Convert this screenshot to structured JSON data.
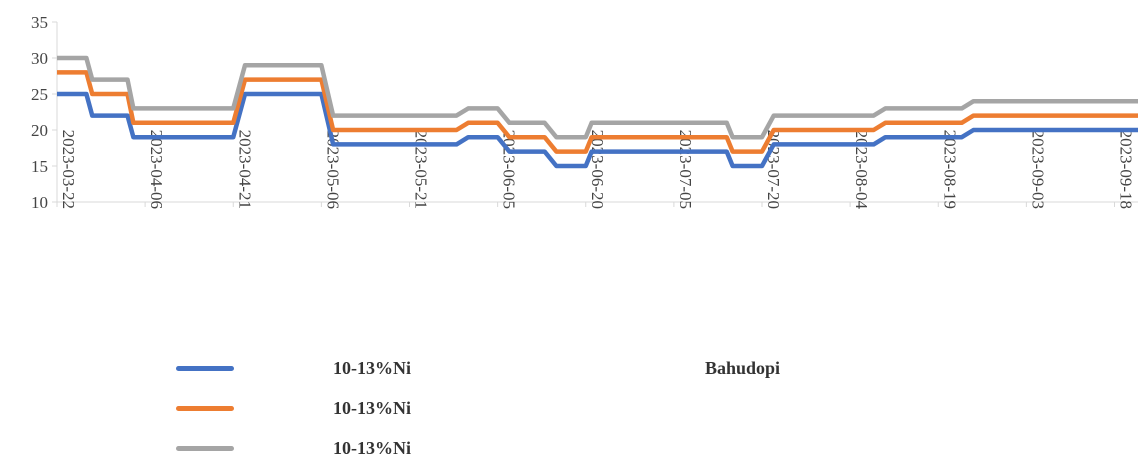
{
  "chart_data": {
    "type": "line",
    "title": "",
    "xlabel": "",
    "ylabel": "",
    "ylim": [
      10,
      35
    ],
    "yticks": [
      10,
      15,
      20,
      25,
      30,
      35
    ],
    "x_tick_labels": [
      "2023-03-22",
      "2023-04-06",
      "2023-04-21",
      "2023-05-06",
      "2023-05-21",
      "2023-06-05",
      "2023-06-20",
      "2023-07-05",
      "2023-07-20",
      "2023-08-04",
      "2023-08-19",
      "2023-09-03",
      "2023-09-18"
    ],
    "x_range": [
      "2023-03-22",
      "2023-09-22"
    ],
    "grid": false,
    "legend_position": "bottom",
    "series": [
      {
        "name": "10-13%Ni",
        "color": "#4472C4",
        "x": [
          "2023-03-22",
          "2023-03-27",
          "2023-03-28",
          "2023-04-03",
          "2023-04-04",
          "2023-04-21",
          "2023-04-23",
          "2023-05-06",
          "2023-05-08",
          "2023-05-29",
          "2023-05-31",
          "2023-06-05",
          "2023-06-07",
          "2023-06-13",
          "2023-06-15",
          "2023-06-20",
          "2023-06-21",
          "2023-07-14",
          "2023-07-15",
          "2023-07-20",
          "2023-07-22",
          "2023-08-08",
          "2023-08-10",
          "2023-08-23",
          "2023-08-25",
          "2023-09-22"
        ],
        "values": [
          25,
          25,
          22,
          22,
          19,
          19,
          25,
          25,
          18,
          18,
          19,
          19,
          17,
          17,
          15,
          15,
          17,
          17,
          15,
          15,
          18,
          18,
          19,
          19,
          20,
          20
        ]
      },
      {
        "name": "10-13%Ni",
        "color": "#ED7D31",
        "x": [
          "2023-03-22",
          "2023-03-27",
          "2023-03-28",
          "2023-04-03",
          "2023-04-04",
          "2023-04-21",
          "2023-04-23",
          "2023-05-06",
          "2023-05-08",
          "2023-05-29",
          "2023-05-31",
          "2023-06-05",
          "2023-06-07",
          "2023-06-13",
          "2023-06-15",
          "2023-06-20",
          "2023-06-21",
          "2023-07-14",
          "2023-07-15",
          "2023-07-20",
          "2023-07-22",
          "2023-08-08",
          "2023-08-10",
          "2023-08-23",
          "2023-08-25",
          "2023-09-22"
        ],
        "values": [
          28,
          28,
          25,
          25,
          21,
          21,
          27,
          27,
          20,
          20,
          21,
          21,
          19,
          19,
          17,
          17,
          19,
          19,
          17,
          17,
          20,
          20,
          21,
          21,
          22,
          22
        ]
      },
      {
        "name": "10-13%Ni",
        "color": "#A5A5A5",
        "x": [
          "2023-03-22",
          "2023-03-27",
          "2023-03-28",
          "2023-04-03",
          "2023-04-04",
          "2023-04-21",
          "2023-04-23",
          "2023-05-06",
          "2023-05-08",
          "2023-05-29",
          "2023-05-31",
          "2023-06-05",
          "2023-06-07",
          "2023-06-13",
          "2023-06-15",
          "2023-06-20",
          "2023-06-21",
          "2023-07-14",
          "2023-07-15",
          "2023-07-20",
          "2023-07-22",
          "2023-08-08",
          "2023-08-10",
          "2023-08-23",
          "2023-08-25",
          "2023-09-22"
        ],
        "values": [
          30,
          30,
          27,
          27,
          23,
          23,
          29,
          29,
          22,
          22,
          23,
          23,
          21,
          21,
          19,
          19,
          21,
          21,
          19,
          19,
          22,
          22,
          23,
          23,
          24,
          24
        ]
      }
    ],
    "legend_annotation": "Bahudopi"
  }
}
